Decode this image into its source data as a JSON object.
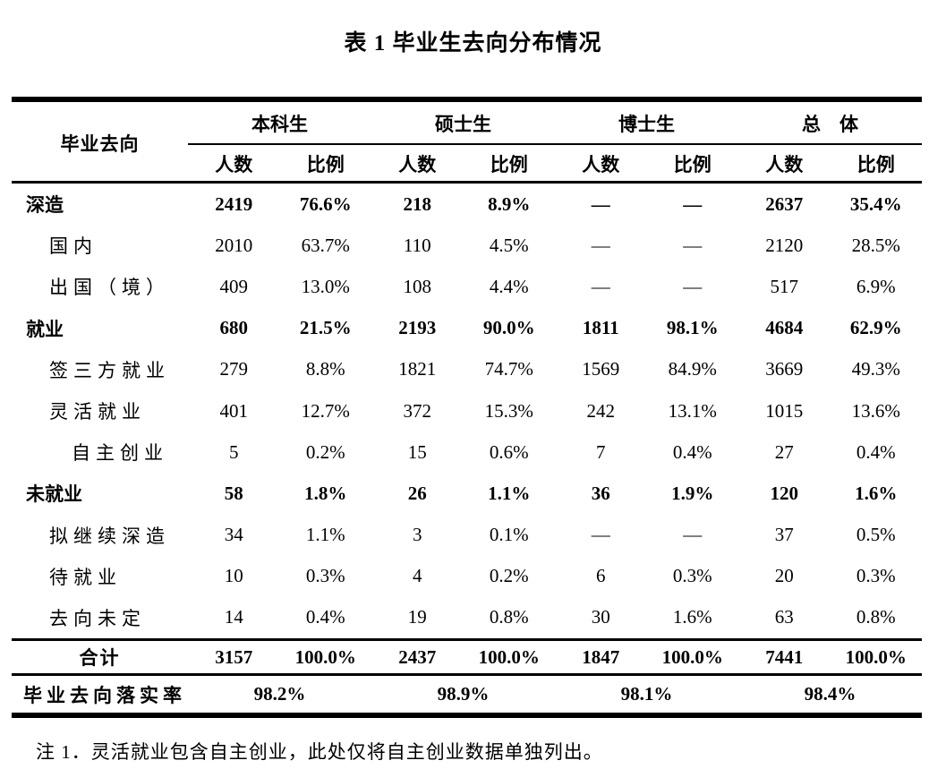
{
  "title": "表 1 毕业生去向分布情况",
  "table": {
    "stub_header": "毕业去向",
    "groups": [
      "本科生",
      "硕士生",
      "博士生",
      "总　体"
    ],
    "sub_headers": [
      "人数",
      "比例"
    ],
    "rows": [
      {
        "label": "深造",
        "level": 0,
        "bold": true,
        "values": [
          "2419",
          "76.6%",
          "218",
          "8.9%",
          "—",
          "—",
          "2637",
          "35.4%"
        ]
      },
      {
        "label": "国内",
        "level": 1,
        "bold": false,
        "values": [
          "2010",
          "63.7%",
          "110",
          "4.5%",
          "—",
          "—",
          "2120",
          "28.5%"
        ]
      },
      {
        "label": "出国（境）",
        "level": 1,
        "bold": false,
        "values": [
          "409",
          "13.0%",
          "108",
          "4.4%",
          "—",
          "—",
          "517",
          "6.9%"
        ]
      },
      {
        "label": "就业",
        "level": 0,
        "bold": true,
        "values": [
          "680",
          "21.5%",
          "2193",
          "90.0%",
          "1811",
          "98.1%",
          "4684",
          "62.9%"
        ]
      },
      {
        "label": "签三方就业",
        "level": 1,
        "bold": false,
        "values": [
          "279",
          "8.8%",
          "1821",
          "74.7%",
          "1569",
          "84.9%",
          "3669",
          "49.3%"
        ]
      },
      {
        "label": "灵活就业",
        "level": 1,
        "bold": false,
        "values": [
          "401",
          "12.7%",
          "372",
          "15.3%",
          "242",
          "13.1%",
          "1015",
          "13.6%"
        ]
      },
      {
        "label": "自主创业",
        "level": 2,
        "bold": false,
        "values": [
          "5",
          "0.2%",
          "15",
          "0.6%",
          "7",
          "0.4%",
          "27",
          "0.4%"
        ]
      },
      {
        "label": "未就业",
        "level": 0,
        "bold": true,
        "values": [
          "58",
          "1.8%",
          "26",
          "1.1%",
          "36",
          "1.9%",
          "120",
          "1.6%"
        ]
      },
      {
        "label": "拟继续深造",
        "level": 1,
        "bold": false,
        "values": [
          "34",
          "1.1%",
          "3",
          "0.1%",
          "—",
          "—",
          "37",
          "0.5%"
        ]
      },
      {
        "label": "待就业",
        "level": 1,
        "bold": false,
        "values": [
          "10",
          "0.3%",
          "4",
          "0.2%",
          "6",
          "0.3%",
          "20",
          "0.3%"
        ]
      },
      {
        "label": "去向未定",
        "level": 1,
        "bold": false,
        "values": [
          "14",
          "0.4%",
          "19",
          "0.8%",
          "30",
          "1.6%",
          "63",
          "0.8%"
        ]
      }
    ],
    "total_row": {
      "label": "合计",
      "values": [
        "3157",
        "100.0%",
        "2437",
        "100.0%",
        "1847",
        "100.0%",
        "7441",
        "100.0%"
      ]
    },
    "rate_row": {
      "label": "毕业去向落实率",
      "values": [
        "98.2%",
        "98.9%",
        "98.1%",
        "98.4%"
      ]
    }
  },
  "footnote": "注 1．灵活就业包含自主创业，此处仅将自主创业数据单独列出。"
}
